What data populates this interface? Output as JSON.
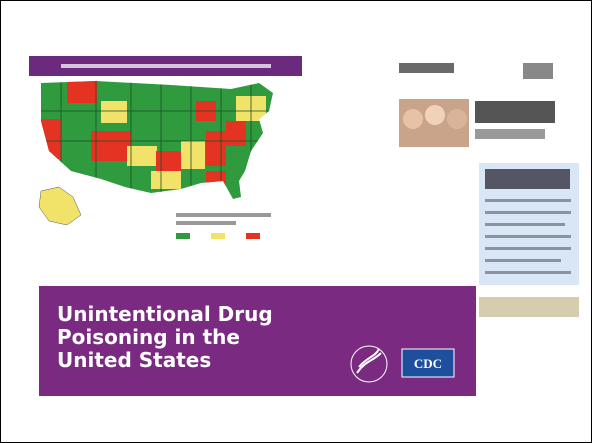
{
  "slide": {
    "title": {
      "lines": [
        "Unintentional Drug",
        "Poisoning in the",
        "United States"
      ]
    },
    "logos": {
      "cdc": "CDC"
    }
  }
}
